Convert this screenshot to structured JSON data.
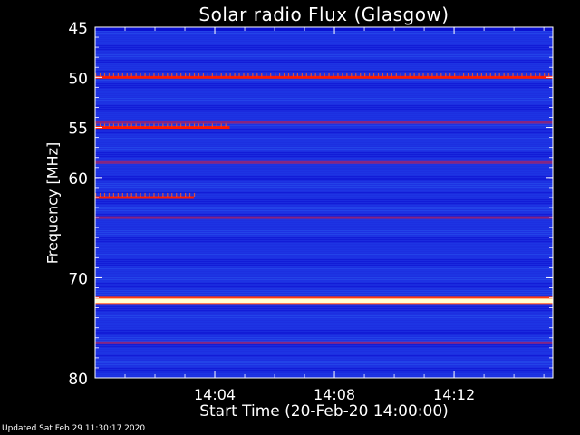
{
  "chart_data": {
    "type": "heatmap",
    "title": "Solar radio Flux (Glasgow)",
    "xlabel": "Start Time (20-Feb-20 14:00:00)",
    "ylabel": "Frequency [MHz]",
    "x_range_minutes": [
      0,
      15.3
    ],
    "x_ticks": [
      {
        "minute": 4,
        "label": "14:04"
      },
      {
        "minute": 8,
        "label": "14:08"
      },
      {
        "minute": 12,
        "label": "14:12"
      }
    ],
    "ylim": [
      45,
      80
    ],
    "y_inverted": true,
    "y_ticks": [
      45,
      50,
      55,
      60,
      70,
      80
    ],
    "y_tick_labels": [
      "45",
      "50",
      "55",
      "60",
      "70",
      "80"
    ],
    "colormap": {
      "background": "#1c2ee0",
      "low": "#0a0fd0",
      "medium": "#9a2270",
      "high": "#ff1a00",
      "max": "#fffdd0"
    },
    "bands": [
      {
        "mhz": 50.0,
        "intensity": "high",
        "from_minute": 0,
        "to_minute": 15.3
      },
      {
        "mhz": 55.0,
        "intensity": "high",
        "from_minute": 0,
        "to_minute": 4.5
      },
      {
        "mhz": 54.5,
        "intensity": "medium",
        "from_minute": 0,
        "to_minute": 15.3
      },
      {
        "mhz": 58.5,
        "intensity": "medium",
        "from_minute": 0,
        "to_minute": 15.3
      },
      {
        "mhz": 62.0,
        "intensity": "high",
        "from_minute": 0,
        "to_minute": 3.3
      },
      {
        "mhz": 64.0,
        "intensity": "medium",
        "from_minute": 0,
        "to_minute": 15.3
      },
      {
        "mhz": 72.3,
        "intensity": "max",
        "from_minute": 0,
        "to_minute": 15.3
      },
      {
        "mhz": 76.5,
        "intensity": "medium",
        "from_minute": 0,
        "to_minute": 15.3
      }
    ]
  },
  "footer": "Updated Sat Feb 29 11:30:17 2020"
}
